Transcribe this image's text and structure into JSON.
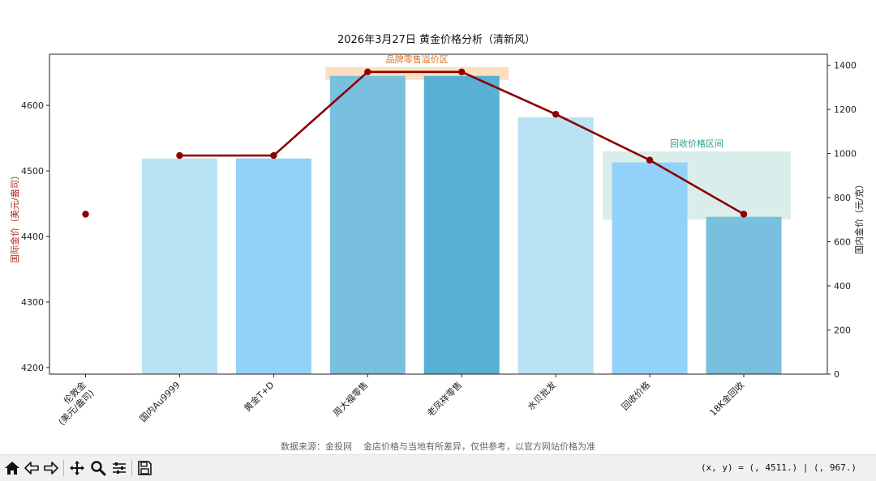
{
  "chart_data": {
    "type": "bar+line",
    "title": "2026年3月27日 黄金价格分析（清新风）",
    "categories": [
      "伦敦金\n(美元/盎司)",
      "国内Au9999",
      "黄金T+D",
      "周大福零售",
      "老凤祥零售",
      "水贝批发",
      "回收价格",
      "18K金回收"
    ],
    "left_axis": {
      "label": "国际金价（美元/盎司）",
      "label_color": "#b22222",
      "ylim": [
        4190,
        4678
      ],
      "ticks": [
        4200,
        4300,
        4400,
        4500,
        4600
      ]
    },
    "right_axis": {
      "label": "国内金价（元/克）",
      "label_color": "#222222",
      "ylim": [
        0,
        1450
      ],
      "ticks": [
        0,
        200,
        400,
        600,
        800,
        1000,
        1200,
        1400
      ]
    },
    "bars": {
      "axis": "left",
      "values": [
        null,
        4519,
        4519,
        4645,
        4645,
        4582,
        4513,
        4430
      ],
      "colors": [
        "#ffffff",
        "#bae2f5",
        "#92d2fa",
        "#78c0de",
        "#58b0d4",
        "#bae2f5",
        "#92d2fa",
        "#78c0de"
      ]
    },
    "line": {
      "axis": "right",
      "color": "#8b0000",
      "values": [
        null,
        991,
        991,
        1370,
        1370,
        1178,
        970,
        725
      ],
      "marker_values": [
        725,
        991,
        991,
        1370,
        1370,
        1178,
        970,
        725
      ]
    },
    "annotations": [
      {
        "text": "品牌零售溢价区",
        "color": "#e07020",
        "fill": "#fcd9b5",
        "x_range": [
          2.55,
          4.5
        ],
        "y_range_right": [
          1334,
          1392
        ]
      },
      {
        "text": "回收价格区间",
        "color": "#2a9d8f",
        "fill": "#d2ebe7",
        "x_range": [
          5.5,
          7.5
        ],
        "y_range_right": [
          700,
          1010
        ]
      }
    ],
    "footnote": "数据来源：金投网    金店价格与当地有所差异，仅供参考，以官方网站价格为准",
    "grid": false
  },
  "toolbar": {
    "buttons": [
      "home-icon",
      "back-icon",
      "forward-icon",
      "pan-icon",
      "zoom-icon",
      "configure-icon",
      "save-icon"
    ],
    "coord_readout": "(x, y) = (, 4511.) | (, 967.)"
  }
}
